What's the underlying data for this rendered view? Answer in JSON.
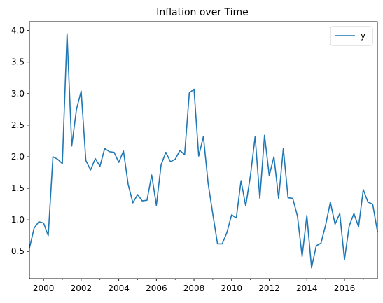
{
  "chart_data": {
    "type": "line",
    "title": "Inflation over Time",
    "xlabel": "",
    "ylabel": "",
    "x_start_year": 1999.25,
    "x_step_years": 0.25,
    "xlim": [
      1999.25,
      2017.75
    ],
    "ylim": [
      0.07,
      4.14
    ],
    "x_ticks": [
      2000,
      2002,
      2004,
      2006,
      2008,
      2010,
      2012,
      2014,
      2016
    ],
    "x_tick_labels": [
      "2000",
      "2002",
      "2004",
      "2006",
      "2008",
      "2010",
      "2012",
      "2014",
      "2016"
    ],
    "y_ticks": [
      0.5,
      1.0,
      1.5,
      2.0,
      2.5,
      3.0,
      3.5,
      4.0
    ],
    "y_tick_labels": [
      "0.5",
      "1.0",
      "1.5",
      "2.0",
      "2.5",
      "3.0",
      "3.5",
      "4.0"
    ],
    "legend_position": "top-right",
    "grid": false,
    "series": [
      {
        "name": "y",
        "color": "#1f77b4",
        "values": [
          0.55,
          0.87,
          0.97,
          0.95,
          0.75,
          2.0,
          1.96,
          1.89,
          3.95,
          2.17,
          2.75,
          3.04,
          1.94,
          1.79,
          1.97,
          1.85,
          2.13,
          2.08,
          2.07,
          1.91,
          2.09,
          1.56,
          1.27,
          1.4,
          1.3,
          1.31,
          1.71,
          1.23,
          1.87,
          2.07,
          1.92,
          1.96,
          2.1,
          2.03,
          3.01,
          3.07,
          2.01,
          2.32,
          1.58,
          1.09,
          0.62,
          0.62,
          0.8,
          1.08,
          1.03,
          1.62,
          1.22,
          1.7,
          2.32,
          1.34,
          2.34,
          1.7,
          2.0,
          1.34,
          2.13,
          1.35,
          1.34,
          1.06,
          0.42,
          1.07,
          0.24,
          0.59,
          0.63,
          0.92,
          1.28,
          0.93,
          1.1,
          0.37,
          0.9,
          1.1,
          0.89,
          1.48,
          1.28,
          1.25,
          0.82
        ]
      }
    ]
  }
}
